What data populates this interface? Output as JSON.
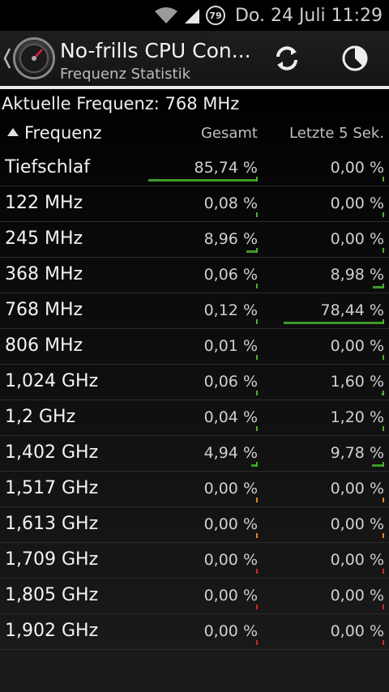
{
  "status": {
    "battery": "79",
    "clock": "Do. 24 Juli 11:29"
  },
  "app": {
    "title": "No-frills CPU Con...",
    "subtitle": "Frequenz Statistik"
  },
  "current": {
    "text": "Aktuelle Frequenz: 768 MHz"
  },
  "header": {
    "freq": "Frequenz",
    "total": "Gesamt",
    "last": "Letzte 5 Sek."
  },
  "icons": {
    "refresh": "refresh-icon",
    "timer": "timer-icon",
    "wifi": "wifi-icon",
    "signal": "signal-icon",
    "up": "chevron-left-icon"
  },
  "colors": {
    "bar": "#3f9a2a",
    "tick_green": "#4caf30",
    "tick_orange": "#d98a1f",
    "tick_red": "#cc2a2a"
  },
  "rows": [
    {
      "label": "Tiefschlaf",
      "total": "85,74 %",
      "last": "0,00 %",
      "total_frac": 0.8574,
      "last_frac": 0.0,
      "tick_total": "green",
      "tick_last": "green"
    },
    {
      "label": "122 MHz",
      "total": "0,08 %",
      "last": "0,00 %",
      "total_frac": 0.0008,
      "last_frac": 0.0,
      "tick_total": "green",
      "tick_last": "green"
    },
    {
      "label": "245 MHz",
      "total": "8,96 %",
      "last": "0,00 %",
      "total_frac": 0.0896,
      "last_frac": 0.0,
      "tick_total": "green",
      "tick_last": "green"
    },
    {
      "label": "368 MHz",
      "total": "0,06 %",
      "last": "8,98 %",
      "total_frac": 0.0006,
      "last_frac": 0.0898,
      "tick_total": "green",
      "tick_last": "green"
    },
    {
      "label": "768 MHz",
      "total": "0,12 %",
      "last": "78,44 %",
      "total_frac": 0.0012,
      "last_frac": 0.7844,
      "tick_total": "green",
      "tick_last": "green"
    },
    {
      "label": "806 MHz",
      "total": "0,01 %",
      "last": "0,00 %",
      "total_frac": 0.0001,
      "last_frac": 0.0,
      "tick_total": "green",
      "tick_last": "green"
    },
    {
      "label": "1,024 GHz",
      "total": "0,06 %",
      "last": "1,60 %",
      "total_frac": 0.0006,
      "last_frac": 0.016,
      "tick_total": "green",
      "tick_last": "green"
    },
    {
      "label": "1,2 GHz",
      "total": "0,04 %",
      "last": "1,20 %",
      "total_frac": 0.0004,
      "last_frac": 0.012,
      "tick_total": "green",
      "tick_last": "green"
    },
    {
      "label": "1,402 GHz",
      "total": "4,94 %",
      "last": "9,78 %",
      "total_frac": 0.0494,
      "last_frac": 0.0978,
      "tick_total": "green",
      "tick_last": "green"
    },
    {
      "label": "1,517 GHz",
      "total": "0,00 %",
      "last": "0,00 %",
      "total_frac": 0.0,
      "last_frac": 0.0,
      "tick_total": "orange",
      "tick_last": "orange"
    },
    {
      "label": "1,613 GHz",
      "total": "0,00 %",
      "last": "0,00 %",
      "total_frac": 0.0,
      "last_frac": 0.0,
      "tick_total": "orange",
      "tick_last": "orange"
    },
    {
      "label": "1,709 GHz",
      "total": "0,00 %",
      "last": "0,00 %",
      "total_frac": 0.0,
      "last_frac": 0.0,
      "tick_total": "red",
      "tick_last": "red"
    },
    {
      "label": "1,805 GHz",
      "total": "0,00 %",
      "last": "0,00 %",
      "total_frac": 0.0,
      "last_frac": 0.0,
      "tick_total": "red",
      "tick_last": "red"
    },
    {
      "label": "1,902 GHz",
      "total": "0,00 %",
      "last": "0,00 %",
      "total_frac": 0.0,
      "last_frac": 0.0,
      "tick_total": "red",
      "tick_last": "red"
    }
  ]
}
